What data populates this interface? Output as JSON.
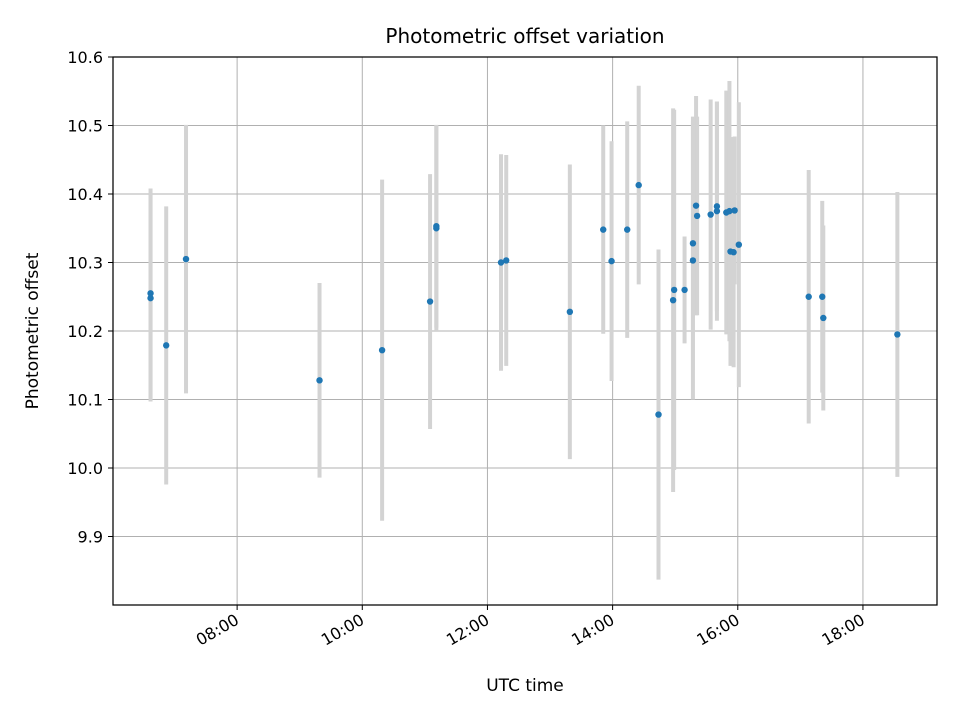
{
  "chart_data": {
    "type": "scatter",
    "title": "Photometric offset variation",
    "xlabel": "UTC time",
    "ylabel": "Photometric offset",
    "grid": true,
    "xlim": [
      "06:01",
      "19:11"
    ],
    "ylim": [
      9.8,
      10.6
    ],
    "x_ticks": [
      "08:00",
      "10:00",
      "12:00",
      "14:00",
      "16:00",
      "18:00"
    ],
    "y_ticks": [
      9.9,
      10.0,
      10.1,
      10.2,
      10.3,
      10.4,
      10.5,
      10.6
    ],
    "marker_color": "#1f77b4",
    "errorbar_color": "#d3d3d3",
    "points": [
      {
        "x": "06:37",
        "y": 10.255,
        "err": 0.153
      },
      {
        "x": "06:37",
        "y": 10.248,
        "err": 0.151
      },
      {
        "x": "06:52",
        "y": 10.179,
        "err": 0.203
      },
      {
        "x": "07:11",
        "y": 10.305,
        "err": 0.196
      },
      {
        "x": "09:19",
        "y": 10.128,
        "err": 0.142
      },
      {
        "x": "10:19",
        "y": 10.172,
        "err": 0.249
      },
      {
        "x": "11:05",
        "y": 10.243,
        "err": 0.186
      },
      {
        "x": "11:11",
        "y": 10.35,
        "err": 0.15
      },
      {
        "x": "11:11",
        "y": 10.353,
        "err": 0.148
      },
      {
        "x": "12:13",
        "y": 10.3,
        "err": 0.158
      },
      {
        "x": "12:18",
        "y": 10.303,
        "err": 0.154
      },
      {
        "x": "13:19",
        "y": 10.228,
        "err": 0.215
      },
      {
        "x": "13:51",
        "y": 10.348,
        "err": 0.152
      },
      {
        "x": "13:59",
        "y": 10.302,
        "err": 0.175
      },
      {
        "x": "14:14",
        "y": 10.348,
        "err": 0.158
      },
      {
        "x": "14:25",
        "y": 10.413,
        "err": 0.145
      },
      {
        "x": "14:44",
        "y": 10.078,
        "err": 0.241
      },
      {
        "x": "14:58",
        "y": 10.245,
        "err": 0.28
      },
      {
        "x": "14:59",
        "y": 10.26,
        "err": 0.263
      },
      {
        "x": "15:09",
        "y": 10.26,
        "err": 0.078
      },
      {
        "x": "15:17",
        "y": 10.303,
        "err": 0.203
      },
      {
        "x": "15:17",
        "y": 10.328,
        "err": 0.185
      },
      {
        "x": "15:20",
        "y": 10.383,
        "err": 0.16
      },
      {
        "x": "15:21",
        "y": 10.368,
        "err": 0.145
      },
      {
        "x": "15:34",
        "y": 10.37,
        "err": 0.168
      },
      {
        "x": "15:40",
        "y": 10.375,
        "err": 0.16
      },
      {
        "x": "15:40",
        "y": 10.382,
        "err": 0.153
      },
      {
        "x": "15:49",
        "y": 10.373,
        "err": 0.178
      },
      {
        "x": "15:52",
        "y": 10.375,
        "err": 0.19
      },
      {
        "x": "15:53",
        "y": 10.316,
        "err": 0.167
      },
      {
        "x": "15:56",
        "y": 10.315,
        "err": 0.168
      },
      {
        "x": "15:57",
        "y": 10.376,
        "err": 0.108
      },
      {
        "x": "16:01",
        "y": 10.326,
        "err": 0.208
      },
      {
        "x": "17:08",
        "y": 10.25,
        "err": 0.185
      },
      {
        "x": "17:21",
        "y": 10.25,
        "err": 0.14
      },
      {
        "x": "17:22",
        "y": 10.219,
        "err": 0.135
      },
      {
        "x": "18:33",
        "y": 10.195,
        "err": 0.208
      }
    ]
  }
}
